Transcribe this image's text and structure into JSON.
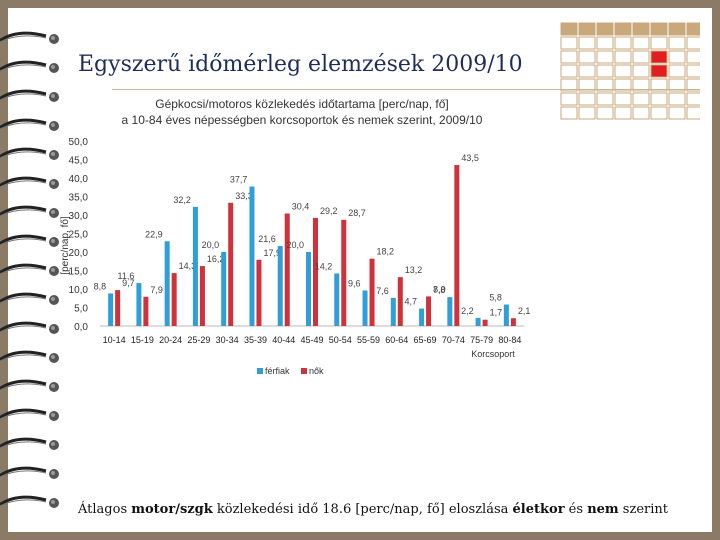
{
  "slide": {
    "title": "Egyszerű időmérleg elemzések 2009/10",
    "caption": {
      "parts": [
        {
          "text": "Átlagos ",
          "bold": false
        },
        {
          "text": "motor/szgk",
          "bold": true
        },
        {
          "text": " közlekedési idő 18.6 [perc/nap, fő] eloszlása ",
          "bold": false
        },
        {
          "text": "életkor",
          "bold": true
        },
        {
          "text": " és ",
          "bold": false
        },
        {
          "text": "nem",
          "bold": true
        },
        {
          "text": " szerint",
          "bold": false
        }
      ]
    }
  },
  "colors": {
    "series_men": "#2e9fd9",
    "series_women": "#d0313a",
    "deco_tan": "#c9a97c",
    "deco_red": "#e02020"
  },
  "chart_data": {
    "type": "bar",
    "title_line1": "Gépkocsi/motoros közlekedés időtartama [perc/nap, fő]",
    "title_line2": "a 10-84 éves népességben korcsoportok és nemek szerint, 2009/10",
    "ylabel": "[perc/nap, fő]",
    "xlabel": "Korcsoport",
    "ylim": [
      0,
      50
    ],
    "yticks": [
      "0,0",
      "5,0",
      "10,0",
      "15,0",
      "20,0",
      "25,0",
      "30,0",
      "35,0",
      "40,0",
      "45,0",
      "50,0"
    ],
    "grid": false,
    "legend_position": "bottom",
    "categories": [
      "10-14",
      "15-19",
      "20-24",
      "25-29",
      "30-34",
      "35-39",
      "40-44",
      "45-49",
      "50-54",
      "55-59",
      "60-64",
      "65-69",
      "70-74",
      "75-79",
      "80-84"
    ],
    "series": [
      {
        "name": "férfiak",
        "values": [
          8.8,
          11.6,
          22.9,
          32.2,
          20.0,
          37.7,
          21.6,
          20.0,
          14.2,
          9.6,
          7.6,
          4.7,
          7.8,
          2.2,
          5.8
        ],
        "labels": [
          "8,8",
          "11,6",
          "22,9",
          "32,2",
          "20,0",
          "37,7",
          "21,6",
          "20,0",
          "14,2",
          "9,6",
          "7,6",
          "4,7",
          "7,8",
          "2,2",
          "5,8"
        ]
      },
      {
        "name": "nők",
        "values": [
          9.7,
          7.9,
          14.3,
          16.2,
          33.3,
          17.9,
          30.4,
          29.2,
          28.7,
          18.2,
          13.2,
          8.0,
          43.5,
          1.7,
          2.1
        ],
        "labels": [
          "9,7",
          "7,9",
          "14,3",
          "16,2",
          "33,3",
          "17,9",
          "30,4",
          "29,2",
          "28,7",
          "18,2",
          "13,2",
          "8,0",
          "43,5",
          "1,7",
          "2,1"
        ]
      }
    ]
  }
}
